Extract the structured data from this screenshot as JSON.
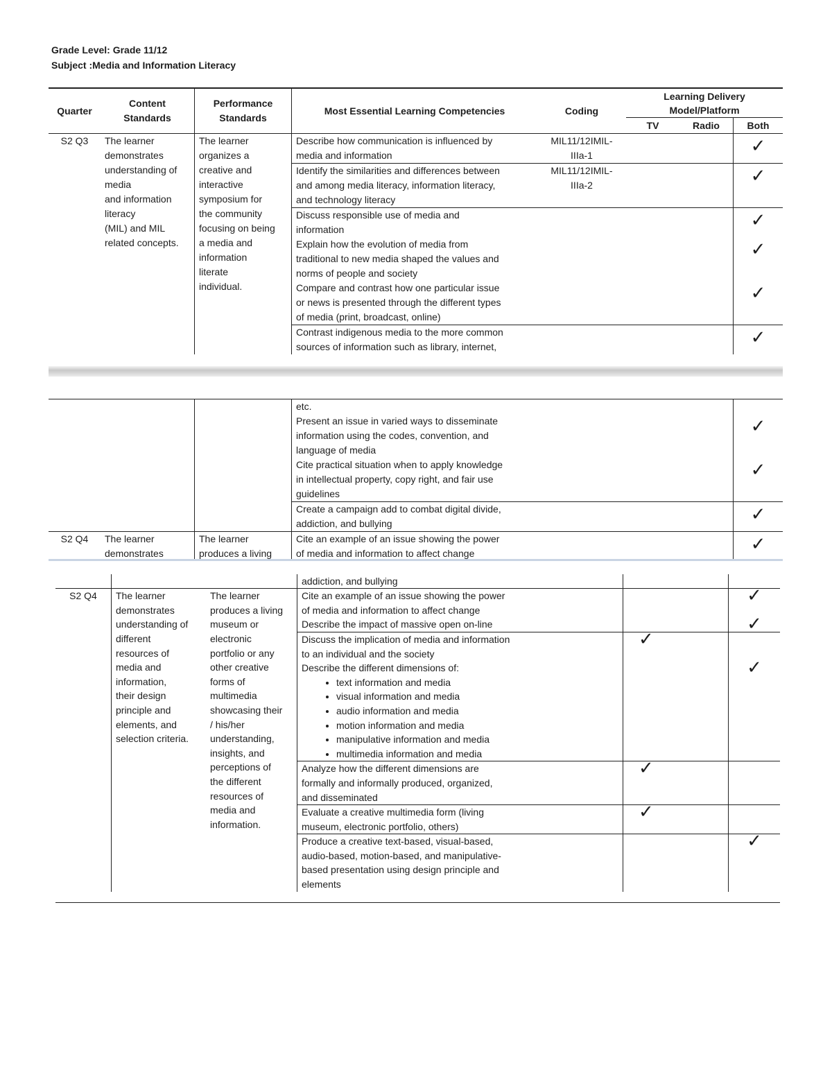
{
  "header": {
    "grade_level": "Grade Level:  Grade 11/12",
    "subject": "Subject :Media and Information Literacy"
  },
  "table_header": {
    "quarter": "Quarter",
    "content": "Content\nStandards",
    "performance": "Performance\nStandards",
    "competencies": "Most Essential Learning Competencies",
    "coding": "Coding",
    "delivery": "Learning Delivery\nModel/Platform",
    "tv": "TV",
    "radio": "Radio",
    "both": "Both"
  },
  "check_icon": "checkmark-icon",
  "segments": [
    {
      "rows": [
        {
          "quarter": "S2 Q3",
          "content": "The learner\ndemonstrates\nunderstanding of\nmedia\nand information\nliteracy\n(MIL) and MIL\nrelated concepts.",
          "performance": "The learner\norganizes a\ncreative and\ninteractive\nsymposium for\nthe community\nfocusing on being\na media and\ninformation\nliterate\nindividual.",
          "groups": [
            [
              {
                "text": "Describe how communication is influenced by\nmedia and information",
                "coding": "MIL11/12IMIL-\nIIIa-1",
                "both": true
              }
            ],
            [
              {
                "text": "Identify the similarities and differences between\nand among media literacy, information literacy,\nand technology literacy",
                "coding": "MIL11/12IMIL-\nIIIa-2",
                "both": true
              }
            ],
            [
              {
                "text": "Discuss responsible use of media and\ninformation",
                "both": true
              },
              {
                "text": "Explain how the evolution of media from\ntraditional to new media shaped the values and\nnorms of people and society",
                "both": true
              },
              {
                "text": "Compare and contrast how one particular issue\nor news is presented through the different types\nof media (print, broadcast, online)",
                "both": true
              }
            ],
            [
              {
                "text": "Contrast indigenous media to the more common\nsources of information such as library, internet,",
                "both": true
              }
            ]
          ]
        }
      ]
    },
    {
      "rows": [
        {
          "quarter": "",
          "content": "",
          "performance": "",
          "groups": [
            [
              {
                "text": "etc."
              },
              {
                "text": "Present an issue in varied ways to disseminate\ninformation using the codes, convention, and\nlanguage of media",
                "both": true
              },
              {
                "text": "Cite practical situation when to apply knowledge\nin  intellectual property, copy right, and fair use\nguidelines",
                "both": true
              }
            ],
            [
              {
                "text": "Create a campaign add to combat digital divide,\naddiction, and bullying",
                "both": true
              }
            ]
          ]
        },
        {
          "quarter": "S2 Q4",
          "content": "The learner\ndemonstrates",
          "performance": "The learner\nproduces a living",
          "groups": [
            [
              {
                "text": "Cite an example of an issue showing the power\nof media and information to affect change",
                "both": true
              }
            ]
          ]
        }
      ]
    },
    {
      "rows": [
        {
          "quarter": "",
          "content": "",
          "performance": "",
          "groups": [
            [
              {
                "text": "Create a campaign add to combat digital divide,\naddiction, and bullying",
                "both": true
              }
            ]
          ]
        },
        {
          "quarter": "S2 Q4",
          "content": "The learner\ndemonstrates\nunderstanding of\ndifferent\nresources of\nmedia and\ninformation,\ntheir design\nprinciple and\nelements, and\nselection criteria.",
          "performance": "The learner\nproduces a living\nmuseum or\nelectronic\nportfolio or any\nother creative\nforms of\nmultimedia\nshowcasing their\n/ his/her\nunderstanding,\ninsights, and\nperceptions of\nthe different\nresources of\nmedia and\ninformation.",
          "groups": [
            [
              {
                "text": "Cite an example of an issue showing the power\nof media and information to affect change",
                "both": true
              },
              {
                "text": "Describe the impact of massive open on-line",
                "both": true
              }
            ],
            [
              {
                "text": "Discuss the implication of media and information\nto an individual and the society",
                "tv": true
              },
              {
                "text": "Describe the different dimensions of:",
                "both": true,
                "bullets": [
                  "text information and media",
                  "visual information and media",
                  "audio information and media",
                  "motion information and media",
                  "manipulative information and media",
                  "multimedia information and media"
                ]
              }
            ],
            [
              {
                "text": "Analyze how the different dimensions are\nformally and informally produced, organized,\nand disseminated",
                "tv": true
              }
            ],
            [
              {
                "text": "Evaluate a creative multimedia form (living\nmuseum, electronic portfolio, others)",
                "tv": true
              }
            ],
            [
              {
                "text": "Produce a creative text-based, visual-based,\naudio-based, motion-based, and manipulative-\nbased presentation using design principle and\nelements",
                "both": true
              }
            ]
          ]
        }
      ]
    }
  ]
}
